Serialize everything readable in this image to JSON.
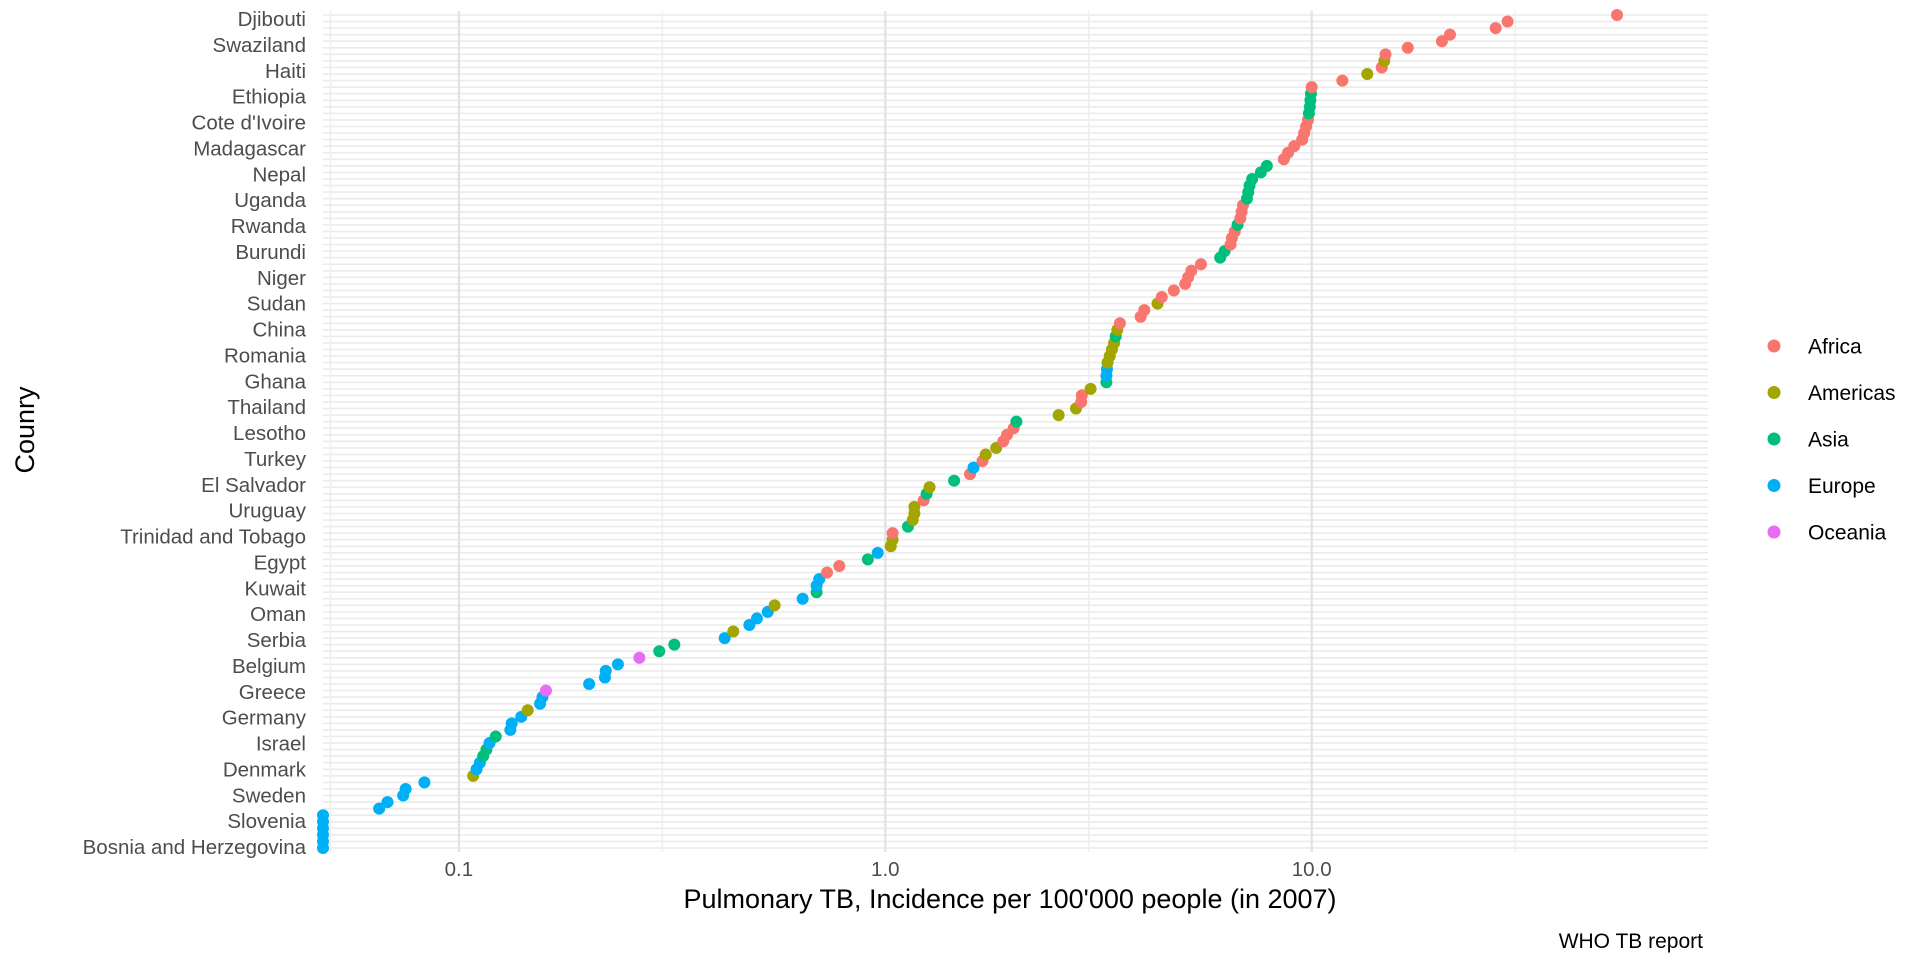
{
  "chart_data": {
    "type": "scatter",
    "xlabel": "Pulmonary TB, Incidence per 100'000 people (in 2007)",
    "ylabel": "Counry",
    "caption": "WHO TB report",
    "x_scale": "log10",
    "xlim": [
      0.048,
      85
    ],
    "x_ticks": [
      0.1,
      1.0,
      10.0
    ],
    "x_tick_labels": [
      "0.1",
      "1.0",
      "10.0"
    ],
    "y_tick_labels": [
      "Bosnia and Herzegovina",
      "Slovenia",
      "Sweden",
      "Denmark",
      "Israel",
      "Germany",
      "Greece",
      "Belgium",
      "Serbia",
      "Oman",
      "Kuwait",
      "Egypt",
      "Trinidad and Tobago",
      "Uruguay",
      "El Salvador",
      "Turkey",
      "Lesotho",
      "Thailand",
      "Ghana",
      "Romania",
      "China",
      "Sudan",
      "Niger",
      "Burundi",
      "Rwanda",
      "Uganda",
      "Nepal",
      "Madagascar",
      "Cote d'Ivoire",
      "Ethiopia",
      "Haiti",
      "Swaziland",
      "Djibouti"
    ],
    "legend": {
      "position": "right",
      "title": ""
    },
    "grid": true,
    "series": [
      {
        "name": "Africa",
        "color": "#F8766D"
      },
      {
        "name": "Americas",
        "color": "#A3A500"
      },
      {
        "name": "Asia",
        "color": "#00BF7D"
      },
      {
        "name": "Europe",
        "color": "#00B0F6"
      },
      {
        "name": "Oceania",
        "color": "#E76BF3"
      }
    ],
    "points": [
      [
        0.048,
        "Europe"
      ],
      [
        0.048,
        "Europe"
      ],
      [
        0.048,
        "Europe"
      ],
      [
        0.048,
        "Europe"
      ],
      [
        0.048,
        "Europe"
      ],
      [
        0.048,
        "Europe"
      ],
      [
        0.065,
        "Europe"
      ],
      [
        0.068,
        "Europe"
      ],
      [
        0.074,
        "Europe"
      ],
      [
        0.075,
        "Europe"
      ],
      [
        0.083,
        "Europe"
      ],
      [
        0.108,
        "Americas"
      ],
      [
        0.11,
        "Europe"
      ],
      [
        0.112,
        "Europe"
      ],
      [
        0.114,
        "Asia"
      ],
      [
        0.116,
        "Asia"
      ],
      [
        0.118,
        "Europe"
      ],
      [
        0.122,
        "Asia"
      ],
      [
        0.132,
        "Europe"
      ],
      [
        0.133,
        "Europe"
      ],
      [
        0.14,
        "Europe"
      ],
      [
        0.145,
        "Americas"
      ],
      [
        0.155,
        "Europe"
      ],
      [
        0.157,
        "Europe"
      ],
      [
        0.16,
        "Oceania"
      ],
      [
        0.202,
        "Europe"
      ],
      [
        0.22,
        "Europe"
      ],
      [
        0.221,
        "Europe"
      ],
      [
        0.236,
        "Europe"
      ],
      [
        0.265,
        "Oceania"
      ],
      [
        0.295,
        "Asia"
      ],
      [
        0.32,
        "Asia"
      ],
      [
        0.42,
        "Europe"
      ],
      [
        0.44,
        "Americas"
      ],
      [
        0.48,
        "Europe"
      ],
      [
        0.5,
        "Europe"
      ],
      [
        0.53,
        "Europe"
      ],
      [
        0.55,
        "Americas"
      ],
      [
        0.64,
        "Europe"
      ],
      [
        0.69,
        "Asia"
      ],
      [
        0.69,
        "Europe"
      ],
      [
        0.7,
        "Europe"
      ],
      [
        0.73,
        "Africa"
      ],
      [
        0.78,
        "Africa"
      ],
      [
        0.91,
        "Asia"
      ],
      [
        0.96,
        "Europe"
      ],
      [
        1.03,
        "Americas"
      ],
      [
        1.04,
        "Americas"
      ],
      [
        1.04,
        "Africa"
      ],
      [
        1.13,
        "Asia"
      ],
      [
        1.16,
        "Americas"
      ],
      [
        1.17,
        "Americas"
      ],
      [
        1.17,
        "Americas"
      ],
      [
        1.23,
        "Africa"
      ],
      [
        1.25,
        "Asia"
      ],
      [
        1.27,
        "Americas"
      ],
      [
        1.45,
        "Asia"
      ],
      [
        1.58,
        "Africa"
      ],
      [
        1.61,
        "Europe"
      ],
      [
        1.69,
        "Africa"
      ],
      [
        1.72,
        "Americas"
      ],
      [
        1.82,
        "Americas"
      ],
      [
        1.89,
        "Africa"
      ],
      [
        1.93,
        "Africa"
      ],
      [
        2.0,
        "Africa"
      ],
      [
        2.03,
        "Asia"
      ],
      [
        2.55,
        "Americas"
      ],
      [
        2.8,
        "Americas"
      ],
      [
        2.88,
        "Africa"
      ],
      [
        2.89,
        "Africa"
      ],
      [
        3.03,
        "Americas"
      ],
      [
        3.3,
        "Asia"
      ],
      [
        3.3,
        "Europe"
      ],
      [
        3.31,
        "Europe"
      ],
      [
        3.32,
        "Americas"
      ],
      [
        3.36,
        "Americas"
      ],
      [
        3.4,
        "Americas"
      ],
      [
        3.44,
        "Americas"
      ],
      [
        3.47,
        "Asia"
      ],
      [
        3.5,
        "Americas"
      ],
      [
        3.55,
        "Africa"
      ],
      [
        3.97,
        "Africa"
      ],
      [
        4.05,
        "Africa"
      ],
      [
        4.35,
        "Americas"
      ],
      [
        4.45,
        "Africa"
      ],
      [
        4.75,
        "Africa"
      ],
      [
        5.05,
        "Africa"
      ],
      [
        5.13,
        "Africa"
      ],
      [
        5.22,
        "Africa"
      ],
      [
        5.5,
        "Africa"
      ],
      [
        6.1,
        "Asia"
      ],
      [
        6.25,
        "Asia"
      ],
      [
        6.45,
        "Africa"
      ],
      [
        6.5,
        "Africa"
      ],
      [
        6.6,
        "Africa"
      ],
      [
        6.7,
        "Asia"
      ],
      [
        6.8,
        "Africa"
      ],
      [
        6.85,
        "Africa"
      ],
      [
        6.9,
        "Africa"
      ],
      [
        7.05,
        "Asia"
      ],
      [
        7.1,
        "Asia"
      ],
      [
        7.15,
        "Asia"
      ],
      [
        7.25,
        "Asia"
      ],
      [
        7.6,
        "Asia"
      ],
      [
        7.85,
        "Asia"
      ],
      [
        8.6,
        "Africa"
      ],
      [
        8.8,
        "Africa"
      ],
      [
        9.1,
        "Africa"
      ],
      [
        9.5,
        "Africa"
      ],
      [
        9.6,
        "Africa"
      ],
      [
        9.7,
        "Africa"
      ],
      [
        9.8,
        "Africa"
      ],
      [
        9.85,
        "Asia"
      ],
      [
        9.9,
        "Asia"
      ],
      [
        9.93,
        "Asia"
      ],
      [
        9.96,
        "Asia"
      ],
      [
        10.0,
        "Africa"
      ],
      [
        11.8,
        "Africa"
      ],
      [
        13.5,
        "Americas"
      ],
      [
        14.6,
        "Africa"
      ],
      [
        14.8,
        "Americas"
      ],
      [
        14.9,
        "Africa"
      ],
      [
        16.8,
        "Africa"
      ],
      [
        20.2,
        "Africa"
      ],
      [
        21.1,
        "Africa"
      ],
      [
        27.0,
        "Africa"
      ],
      [
        28.8,
        "Africa"
      ],
      [
        52.0,
        "Africa"
      ]
    ]
  }
}
